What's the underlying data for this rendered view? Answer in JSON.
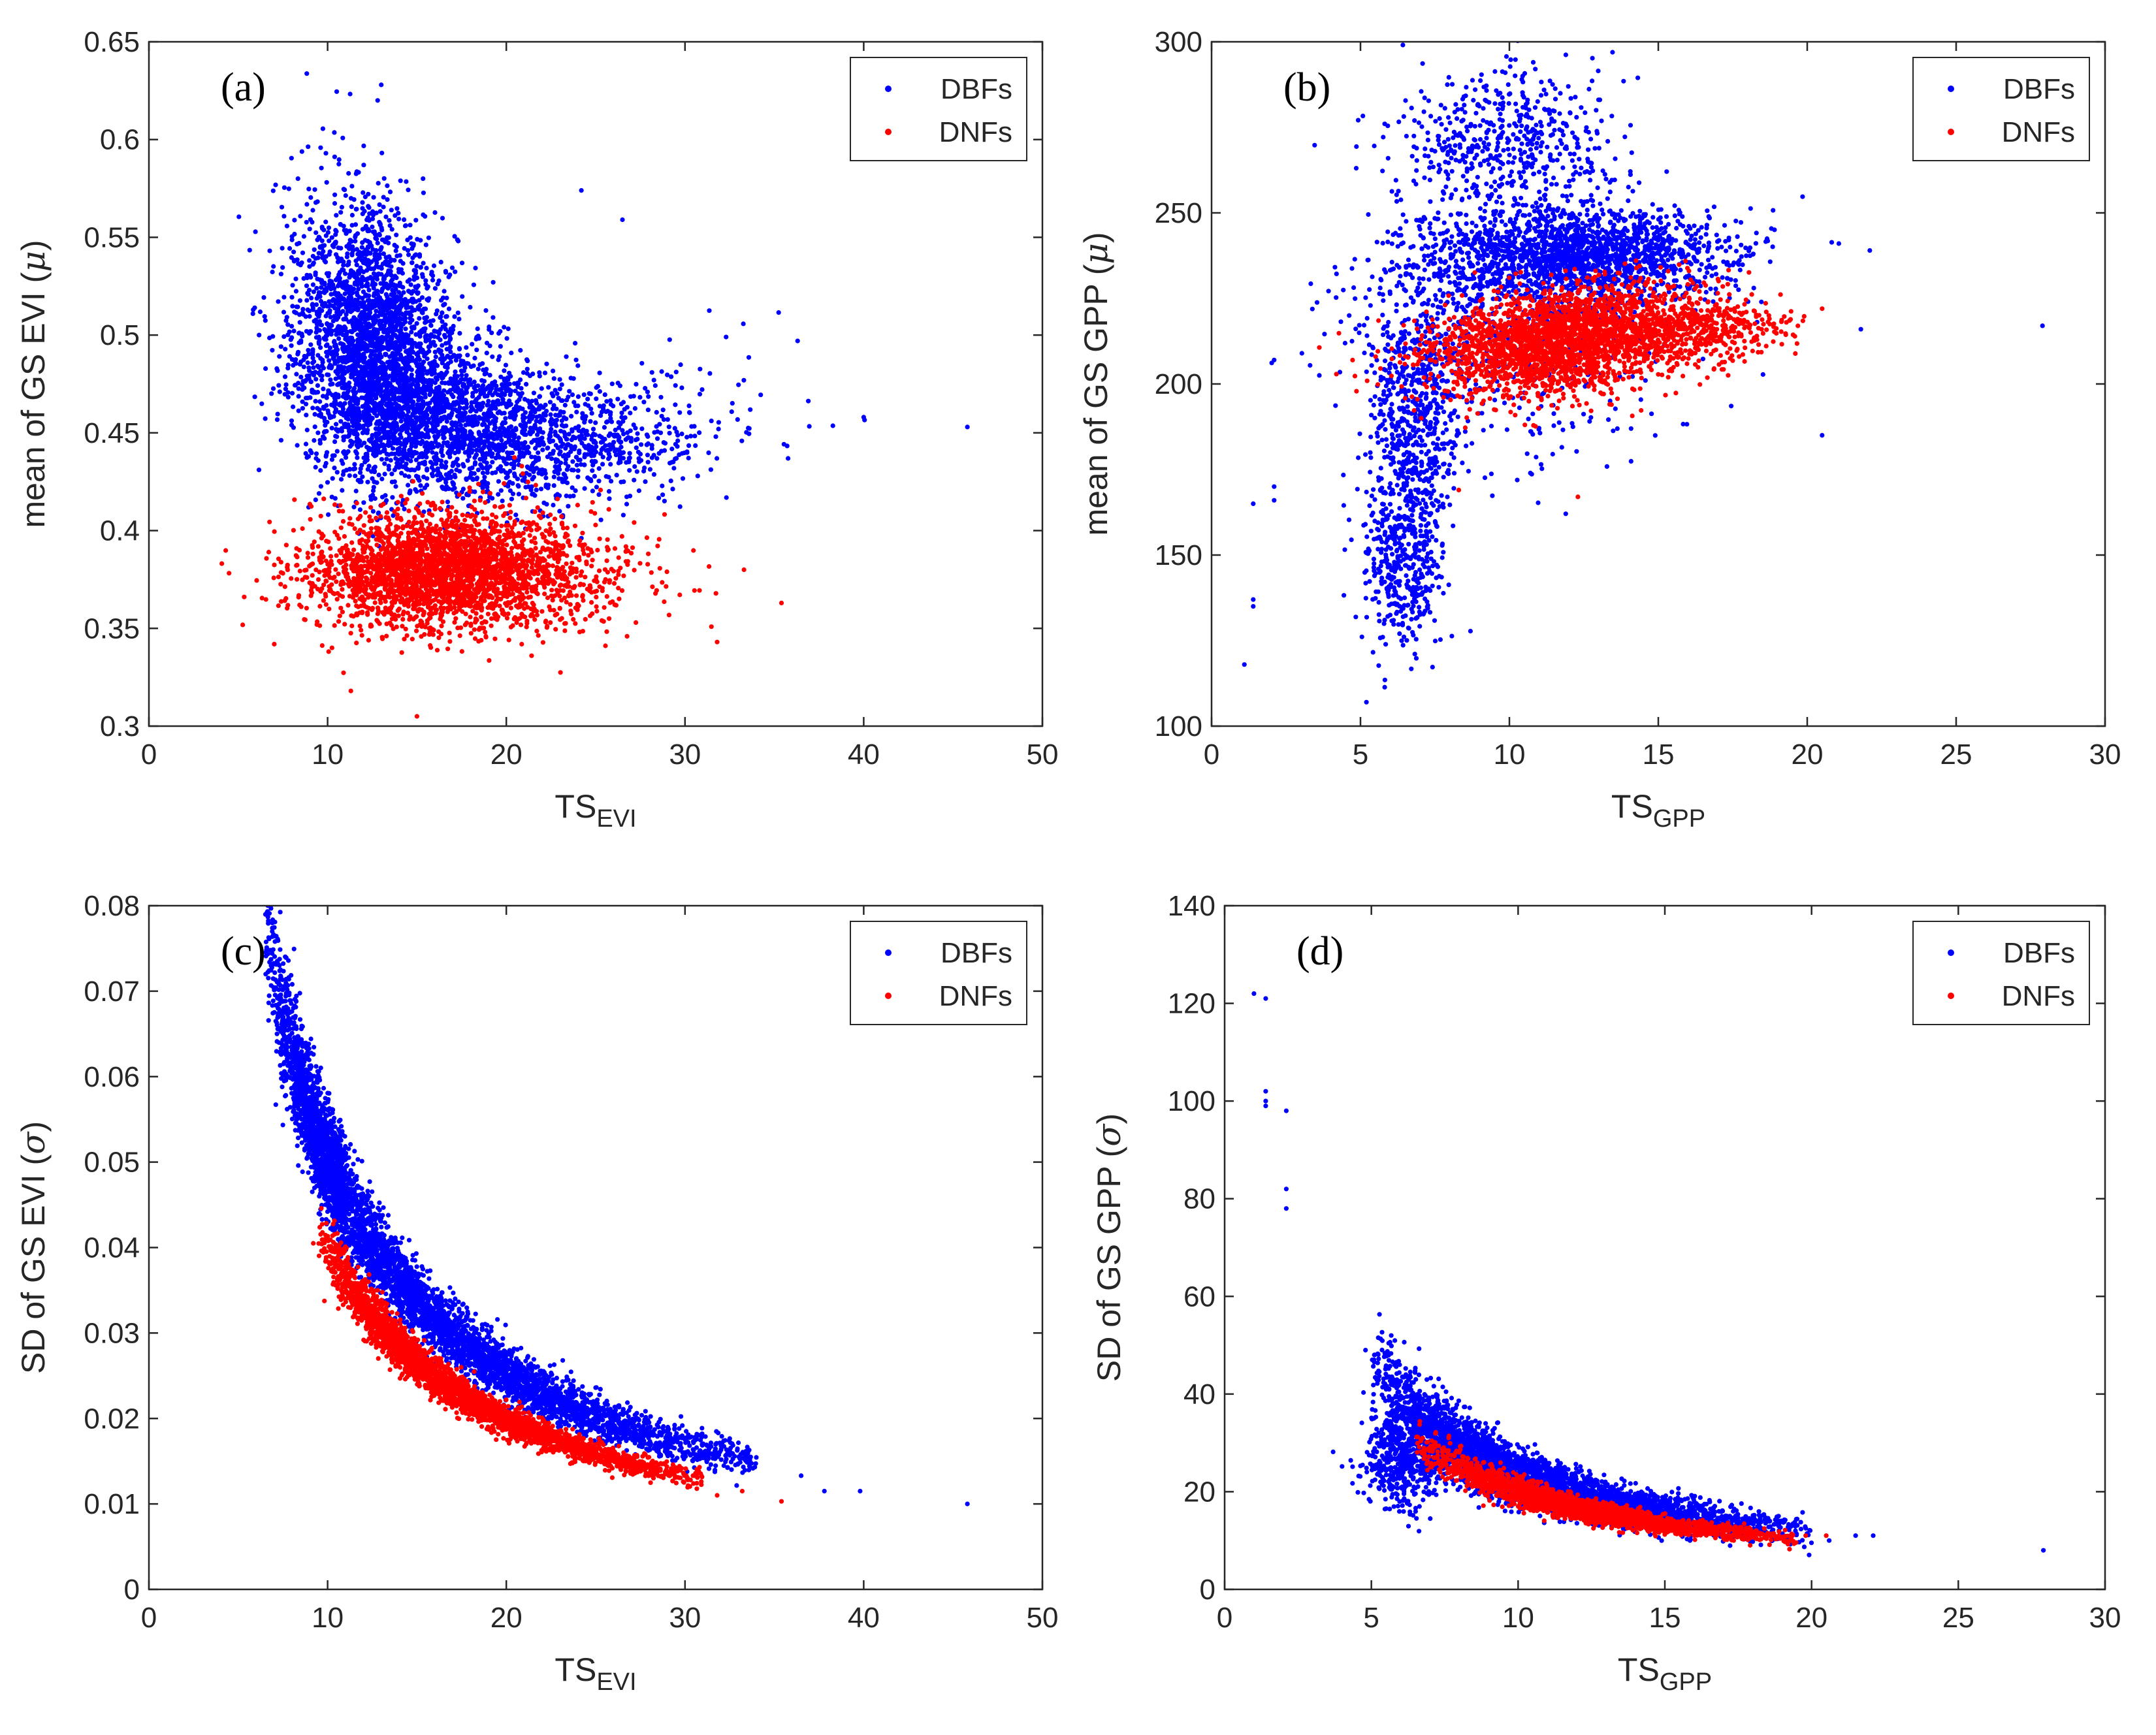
{
  "colors": {
    "DBFs": "#0000ff",
    "DNFs": "#ff0000",
    "axis": "#262626",
    "background": "#ffffff"
  },
  "chart_data": [
    {
      "id": "a",
      "type": "scatter",
      "panel_label": "(a)",
      "xlabel": {
        "main": "TS",
        "sub": "EVI"
      },
      "ylabel": {
        "pre": "mean of GS EVI (",
        "sym": "μ",
        "post": ")"
      },
      "xlim": [
        0,
        50
      ],
      "ylim": [
        0.3,
        0.65
      ],
      "xticks": [
        0,
        10,
        20,
        30,
        40,
        50
      ],
      "xtick_labels": [
        "0",
        "10",
        "20",
        "30",
        "40",
        "50"
      ],
      "yticks": [
        0.3,
        0.35,
        0.4,
        0.45,
        0.5,
        0.55,
        0.6,
        0.65
      ],
      "ytick_labels": [
        "0.3",
        "0.35",
        "0.4",
        "0.45",
        "0.5",
        "0.55",
        "0.6",
        "0.65"
      ],
      "legend_position": "top-right",
      "series": [
        {
          "name": "DBFs",
          "color": "#0000ff",
          "clusters": [
            {
              "n": 2600,
              "cx": 12.5,
              "cy": 0.495,
              "sx": 2.3,
              "sy": 0.035,
              "rho": -0.2
            },
            {
              "n": 1500,
              "cx": 17,
              "cy": 0.455,
              "sx": 3.5,
              "sy": 0.02,
              "rho": -0.2
            },
            {
              "n": 500,
              "cx": 24,
              "cy": 0.445,
              "sx": 3,
              "sy": 0.015,
              "rho": 0
            },
            {
              "n": 90,
              "cx": 30,
              "cy": 0.46,
              "sx": 4,
              "sy": 0.02,
              "rho": 0
            }
          ],
          "points": [
            [
              45.8,
              0.453
            ],
            [
              40,
              0.458
            ],
            [
              36.3,
              0.497
            ],
            [
              32.3,
              0.499
            ],
            [
              26.5,
              0.559
            ],
            [
              24.2,
              0.574
            ],
            [
              13,
              0.628
            ],
            [
              12.8,
              0.62
            ]
          ]
        },
        {
          "name": "DNFs",
          "color": "#ff0000",
          "clusters": [
            {
              "n": 2800,
              "cx": 16.5,
              "cy": 0.38,
              "sx": 3.6,
              "sy": 0.015,
              "rho": 0
            },
            {
              "n": 150,
              "cx": 25,
              "cy": 0.375,
              "sx": 2.5,
              "sy": 0.012,
              "rho": 0
            }
          ],
          "points": [
            [
              35.4,
              0.363
            ],
            [
              31.8,
              0.343
            ],
            [
              15,
              0.305
            ],
            [
              11.3,
              0.318
            ],
            [
              33.3,
              0.38
            ]
          ]
        }
      ]
    },
    {
      "id": "b",
      "type": "scatter",
      "panel_label": "(b)",
      "xlabel": {
        "main": "TS",
        "sub": "GPP"
      },
      "ylabel": {
        "pre": "mean of GS GPP (",
        "sym": "μ",
        "post": ")"
      },
      "xlim": [
        0,
        30
      ],
      "ylim": [
        100,
        300
      ],
      "xticks": [
        0,
        5,
        10,
        15,
        20,
        25,
        30
      ],
      "xtick_labels": [
        "0",
        "5",
        "10",
        "15",
        "20",
        "25",
        "30"
      ],
      "yticks": [
        100,
        150,
        200,
        250,
        300
      ],
      "ytick_labels": [
        "100",
        "150",
        "200",
        "250",
        "300"
      ],
      "legend_position": "top-right",
      "series": [
        {
          "name": "DBFs",
          "color": "#0000ff",
          "clusters": [
            {
              "n": 1800,
              "cx": 12.3,
              "cy": 238,
              "sx": 2.6,
              "sy": 7,
              "rho": 0
            },
            {
              "n": 500,
              "cx": 10,
              "cy": 272,
              "sx": 1.8,
              "sy": 10,
              "rho": 0
            },
            {
              "n": 700,
              "cx": 6.8,
              "cy": 185,
              "sx": 0.8,
              "sy": 22,
              "rho": 0.2
            },
            {
              "n": 300,
              "cx": 6.5,
              "cy": 145,
              "sx": 0.7,
              "sy": 10,
              "rho": 0
            },
            {
              "n": 600,
              "cx": 9.5,
              "cy": 215,
              "sx": 2.5,
              "sy": 20,
              "rho": 0
            }
          ],
          "points": [
            [
              27.9,
              217
            ],
            [
              22.1,
              239
            ],
            [
              21.8,
              216
            ],
            [
              20.5,
              185
            ],
            [
              5.2,
              107
            ],
            [
              1.1,
              118
            ],
            [
              1.4,
              137
            ],
            [
              1.4,
              135
            ],
            [
              1.4,
              165
            ],
            [
              2.1,
              207
            ],
            [
              2.1,
              170
            ],
            [
              2.1,
              166
            ],
            [
              10.8,
              294
            ]
          ]
        },
        {
          "name": "DNFs",
          "color": "#ff0000",
          "clusters": [
            {
              "n": 2600,
              "cx": 12,
              "cy": 213,
              "sx": 2.3,
              "sy": 8,
              "rho": 0.3
            },
            {
              "n": 250,
              "cx": 17,
              "cy": 216,
              "sx": 1.2,
              "sy": 4,
              "rho": 0
            }
          ],
          "points": [
            [
              20.5,
              222
            ],
            [
              19.3,
              218
            ],
            [
              12.3,
              167
            ],
            [
              8.3,
              169
            ]
          ]
        }
      ]
    },
    {
      "id": "c",
      "type": "scatter",
      "panel_label": "(c)",
      "xlabel": {
        "main": "TS",
        "sub": "EVI"
      },
      "ylabel": {
        "pre": "SD of GS EVI (",
        "sym": "σ",
        "post": ")"
      },
      "xlim": [
        0,
        50
      ],
      "ylim": [
        0,
        0.08
      ],
      "xticks": [
        0,
        10,
        20,
        30,
        40,
        50
      ],
      "xtick_labels": [
        "0",
        "10",
        "20",
        "30",
        "40",
        "50"
      ],
      "yticks": [
        0,
        0.01,
        0.02,
        0.03,
        0.04,
        0.05,
        0.06,
        0.07,
        0.08
      ],
      "ytick_labels": [
        "0",
        "0.01",
        "0.02",
        "0.03",
        "0.04",
        "0.05",
        "0.06",
        "0.07",
        "0.08"
      ],
      "legend_position": "top-right",
      "series": [
        {
          "name": "DBFs",
          "color": "#0000ff",
          "curve": {
            "n": 5200,
            "k": 0.505,
            "xmin": 6.5,
            "xmax": 34,
            "peak": 11,
            "spread": 0.065
          },
          "points": [
            [
              45.8,
              0.01
            ],
            [
              39.8,
              0.0115
            ],
            [
              37.8,
              0.0115
            ],
            [
              36.5,
              0.0133
            ],
            [
              6.6,
              0.0792
            ],
            [
              6.9,
              0.077
            ]
          ]
        },
        {
          "name": "DNFs",
          "color": "#ff0000",
          "curve": {
            "n": 3200,
            "k": 0.398,
            "xmin": 9.5,
            "xmax": 31,
            "peak": 15,
            "spread": 0.045
          },
          "points": [
            [
              35.4,
              0.0103
            ],
            [
              33.2,
              0.0115
            ],
            [
              31.8,
              0.011
            ],
            [
              9.2,
              0.0405
            ]
          ]
        }
      ]
    },
    {
      "id": "d",
      "type": "scatter",
      "panel_label": "(d)",
      "xlabel": {
        "main": "TS",
        "sub": "GPP"
      },
      "ylabel": {
        "pre": "SD of GS GPP (",
        "sym": "σ",
        "post": ")"
      },
      "xlim": [
        0,
        30
      ],
      "ylim": [
        0,
        140
      ],
      "xticks": [
        0,
        5,
        10,
        15,
        20,
        25,
        30
      ],
      "xtick_labels": [
        "0",
        "5",
        "10",
        "15",
        "20",
        "25",
        "30"
      ],
      "yticks": [
        0,
        20,
        40,
        60,
        80,
        100,
        120,
        140
      ],
      "ytick_labels": [
        "0",
        "20",
        "40",
        "60",
        "80",
        "100",
        "120",
        "140"
      ],
      "legend_position": "top-right",
      "series": [
        {
          "name": "DBFs",
          "color": "#0000ff",
          "curve": {
            "n": 3800,
            "k": 235,
            "xmin": 5,
            "xmax": 20,
            "peak": 9,
            "spread": 0.12
          },
          "clusters": [
            {
              "n": 500,
              "cx": 6,
              "cy": 27,
              "sx": 0.6,
              "sy": 5,
              "rho": 0
            }
          ],
          "points": [
            [
              27.9,
              8
            ],
            [
              22.1,
              11
            ],
            [
              21.5,
              11
            ],
            [
              20.6,
              10
            ],
            [
              1,
              122
            ],
            [
              1.4,
              121
            ],
            [
              1.4,
              102
            ],
            [
              1.4,
              100
            ],
            [
              1.4,
              99
            ],
            [
              2.1,
              98
            ],
            [
              2.1,
              82
            ],
            [
              2.1,
              78
            ],
            [
              4.8,
              49
            ],
            [
              5.1,
              48
            ]
          ]
        },
        {
          "name": "DNFs",
          "color": "#ff0000",
          "curve": {
            "n": 2400,
            "k": 200,
            "xmin": 6.5,
            "xmax": 19.5,
            "peak": 11,
            "spread": 0.07
          },
          "points": [
            [
              20.5,
              11
            ],
            [
              19.8,
              11
            ]
          ]
        }
      ]
    }
  ]
}
